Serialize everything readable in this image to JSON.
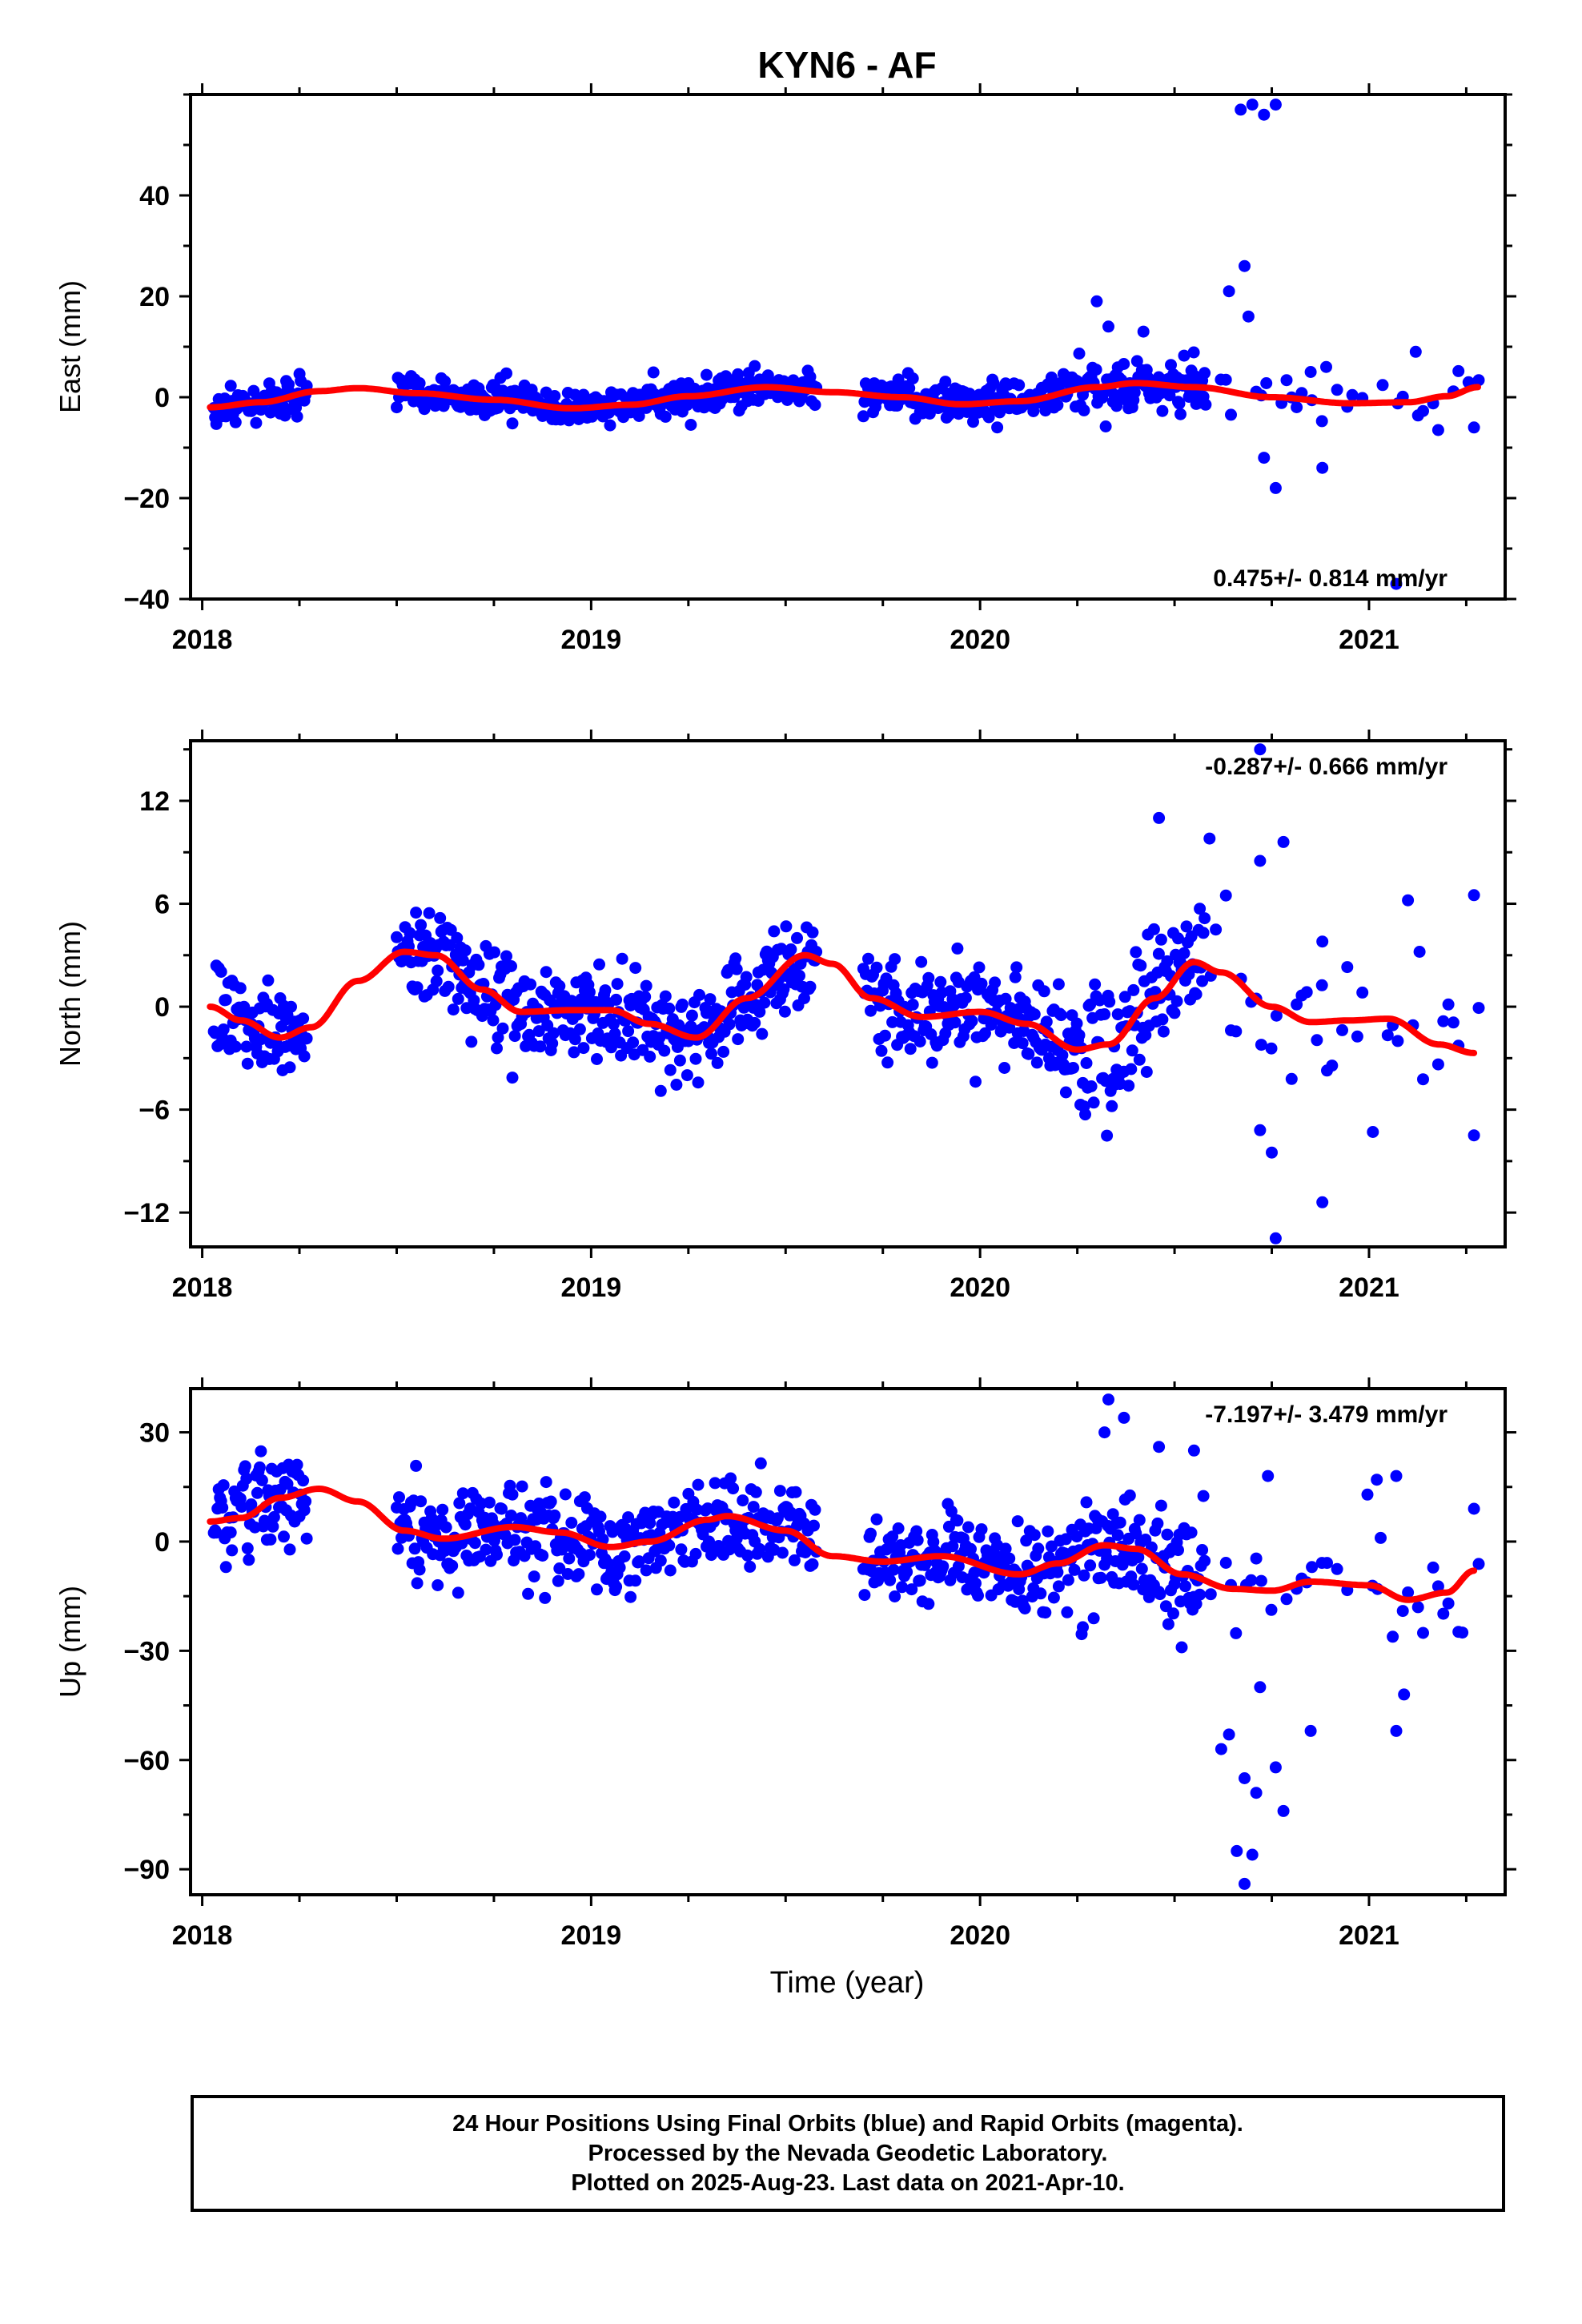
{
  "title": "KYN6 - AF",
  "xlabel": "Time (year)",
  "colors": {
    "final_orbits": "#0000ff",
    "rapid_orbits": "#ff00ff",
    "model": "#ff0000"
  },
  "footer": {
    "line1": "24 Hour Positions Using Final Orbits (blue) and Rapid Orbits (magenta).",
    "line2": "Processed by the Nevada Geodetic Laboratory.",
    "line3": "Plotted on 2025-Aug-23. Last data on 2021-Apr-10."
  },
  "chart_data": [
    {
      "type": "scatter",
      "ylabel": "East (mm)",
      "rate": "0.475+/- 0.814 mm/yr",
      "rate_position": "bottom-right",
      "xlim": [
        2017.97,
        2021.35
      ],
      "ylim": [
        -40,
        60
      ],
      "yticks": [
        -40,
        -20,
        0,
        20,
        40
      ],
      "ytick_labels": [
        "−40",
        "−20",
        "0",
        "20",
        "40"
      ],
      "xticks": [
        2018,
        2019,
        2020,
        2021
      ],
      "xtick_labels": [
        "2018",
        "2019",
        "2020",
        "2021"
      ],
      "grid": false,
      "noise_sd": 2.6,
      "model_fit": [
        [
          2018.02,
          -2.0
        ],
        [
          2018.15,
          -1.0
        ],
        [
          2018.3,
          1.2
        ],
        [
          2018.4,
          1.8
        ],
        [
          2018.55,
          0.8
        ],
        [
          2018.75,
          -0.5
        ],
        [
          2018.95,
          -2.2
        ],
        [
          2019.1,
          -1.5
        ],
        [
          2019.25,
          0.2
        ],
        [
          2019.45,
          2.0
        ],
        [
          2019.62,
          1.0
        ],
        [
          2019.8,
          0.0
        ],
        [
          2019.95,
          -1.4
        ],
        [
          2020.1,
          -0.8
        ],
        [
          2020.3,
          2.0
        ],
        [
          2020.4,
          2.8
        ],
        [
          2020.55,
          2.0
        ],
        [
          2020.75,
          0.0
        ],
        [
          2020.95,
          -1.2
        ],
        [
          2021.1,
          -1.0
        ],
        [
          2021.2,
          0.2
        ],
        [
          2021.28,
          2.0
        ]
      ],
      "extra_points": [
        [
          2020.67,
          57
        ],
        [
          2020.7,
          58
        ],
        [
          2020.73,
          56
        ],
        [
          2020.76,
          58
        ],
        [
          2020.3,
          19
        ],
        [
          2020.64,
          21
        ],
        [
          2020.68,
          26
        ],
        [
          2020.69,
          16
        ],
        [
          2020.33,
          14
        ],
        [
          2020.42,
          13
        ],
        [
          2020.76,
          -18
        ],
        [
          2020.88,
          -14
        ],
        [
          2021.07,
          -37
        ],
        [
          2021.12,
          9
        ],
        [
          2021.27,
          -6
        ],
        [
          2020.85,
          5
        ],
        [
          2020.89,
          6
        ],
        [
          2020.73,
          -12
        ]
      ]
    },
    {
      "type": "scatter",
      "ylabel": "North (mm)",
      "rate": "-0.287+/- 0.666 mm/yr",
      "rate_position": "top-right",
      "xlim": [
        2017.97,
        2021.35
      ],
      "ylim": [
        -14,
        15.5
      ],
      "yticks": [
        -12,
        -6,
        0,
        6,
        12
      ],
      "ytick_labels": [
        "−12",
        "−6",
        "0",
        "6",
        "12"
      ],
      "xticks": [
        2018,
        2019,
        2020,
        2021
      ],
      "xtick_labels": [
        "2018",
        "2019",
        "2020",
        "2021"
      ],
      "grid": false,
      "noise_sd": 1.9,
      "model_fit": [
        [
          2018.02,
          0.0
        ],
        [
          2018.1,
          -0.8
        ],
        [
          2018.2,
          -1.8
        ],
        [
          2018.28,
          -1.2
        ],
        [
          2018.4,
          1.5
        ],
        [
          2018.52,
          3.2
        ],
        [
          2018.6,
          3.0
        ],
        [
          2018.72,
          1.0
        ],
        [
          2018.82,
          -0.3
        ],
        [
          2018.95,
          -0.2
        ],
        [
          2019.05,
          -0.2
        ],
        [
          2019.15,
          -1.0
        ],
        [
          2019.27,
          -1.8
        ],
        [
          2019.4,
          0.5
        ],
        [
          2019.55,
          3.0
        ],
        [
          2019.62,
          2.5
        ],
        [
          2019.72,
          0.5
        ],
        [
          2019.85,
          -0.6
        ],
        [
          2020.0,
          -0.3
        ],
        [
          2020.12,
          -1.0
        ],
        [
          2020.25,
          -2.5
        ],
        [
          2020.33,
          -2.2
        ],
        [
          2020.45,
          0.5
        ],
        [
          2020.55,
          2.6
        ],
        [
          2020.62,
          2.0
        ],
        [
          2020.75,
          0.0
        ],
        [
          2020.85,
          -0.9
        ],
        [
          2020.95,
          -0.8
        ],
        [
          2021.05,
          -0.7
        ],
        [
          2021.18,
          -2.2
        ],
        [
          2021.27,
          -2.7
        ]
      ],
      "extra_points": [
        [
          2020.72,
          15
        ],
        [
          2020.46,
          11
        ],
        [
          2020.59,
          9.8
        ],
        [
          2020.72,
          8.5
        ],
        [
          2020.78,
          9.6
        ],
        [
          2021.27,
          6.5
        ],
        [
          2021.1,
          6.2
        ],
        [
          2020.76,
          -13.5
        ],
        [
          2020.88,
          -11.4
        ],
        [
          2021.27,
          -7.5
        ],
        [
          2021.01,
          -7.3
        ],
        [
          2020.75,
          -8.5
        ],
        [
          2020.72,
          -7.2
        ],
        [
          2020.88,
          3.8
        ],
        [
          2021.13,
          3.2
        ]
      ]
    },
    {
      "type": "scatter",
      "ylabel": "Up (mm)",
      "rate": "-7.197+/- 3.479 mm/yr",
      "rate_position": "top-right",
      "xlim": [
        2017.97,
        2021.35
      ],
      "ylim": [
        -97,
        42
      ],
      "yticks": [
        -90,
        -60,
        -30,
        0,
        30
      ],
      "ytick_labels": [
        "−90",
        "−60",
        "−30",
        "0",
        "30"
      ],
      "xticks": [
        2018,
        2019,
        2020,
        2021
      ],
      "xtick_labels": [
        "2018",
        "2019",
        "2020",
        "2021"
      ],
      "grid": false,
      "noise_sd": 8.5,
      "model_fit": [
        [
          2018.02,
          5.5
        ],
        [
          2018.1,
          6.5
        ],
        [
          2018.2,
          12.0
        ],
        [
          2018.3,
          14.5
        ],
        [
          2018.4,
          11.0
        ],
        [
          2018.52,
          3.0
        ],
        [
          2018.62,
          0.8
        ],
        [
          2018.8,
          4.0
        ],
        [
          2018.92,
          2.5
        ],
        [
          2019.05,
          -1.5
        ],
        [
          2019.15,
          0.0
        ],
        [
          2019.3,
          6.0
        ],
        [
          2019.35,
          7.0
        ],
        [
          2019.5,
          3.0
        ],
        [
          2019.62,
          -4.0
        ],
        [
          2019.75,
          -5.5
        ],
        [
          2019.9,
          -4.0
        ],
        [
          2020.1,
          -9.0
        ],
        [
          2020.2,
          -6.0
        ],
        [
          2020.32,
          -1.0
        ],
        [
          2020.4,
          -2.0
        ],
        [
          2020.52,
          -9.0
        ],
        [
          2020.65,
          -13.0
        ],
        [
          2020.75,
          -13.5
        ],
        [
          2020.85,
          -11.0
        ],
        [
          2021.0,
          -12.0
        ],
        [
          2021.1,
          -16.0
        ],
        [
          2021.2,
          -14.0
        ],
        [
          2021.27,
          -8.0
        ]
      ],
      "extra_points": [
        [
          2020.33,
          39
        ],
        [
          2020.37,
          34
        ],
        [
          2020.32,
          30
        ],
        [
          2020.66,
          -85
        ],
        [
          2020.68,
          -94
        ],
        [
          2020.7,
          -86
        ],
        [
          2020.68,
          -65
        ],
        [
          2020.71,
          -69
        ],
        [
          2020.78,
          -74
        ],
        [
          2020.62,
          -57
        ],
        [
          2020.64,
          -53
        ],
        [
          2020.76,
          -62
        ],
        [
          2020.72,
          -40
        ],
        [
          2020.85,
          -52
        ],
        [
          2021.07,
          -52
        ],
        [
          2021.09,
          -42
        ],
        [
          2021.03,
          1
        ],
        [
          2021.27,
          9
        ],
        [
          2021.07,
          18
        ],
        [
          2021.02,
          17
        ],
        [
          2021.24,
          -25
        ],
        [
          2020.74,
          18
        ],
        [
          2020.55,
          25
        ],
        [
          2020.46,
          26
        ]
      ]
    }
  ]
}
